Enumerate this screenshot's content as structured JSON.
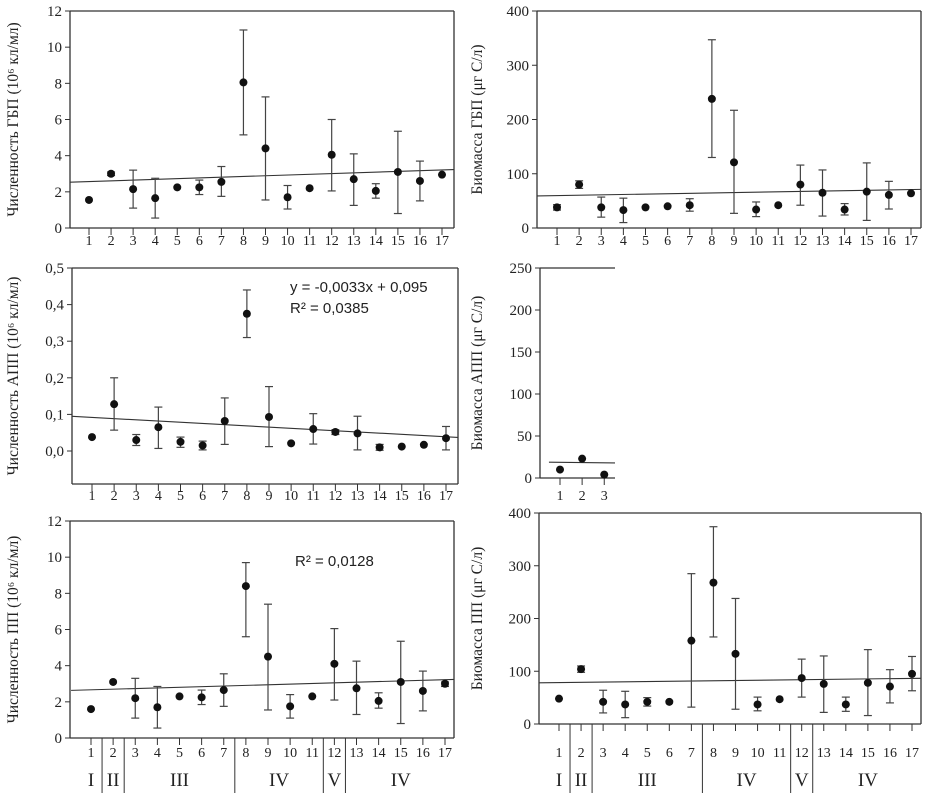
{
  "chart_data": [
    {
      "type": "scatter",
      "ylabel": "Численность ГБП (10⁶ кл/мл)",
      "ylim": [
        0,
        12
      ],
      "yticks": [
        "0",
        "2",
        "4",
        "6",
        "8",
        "10",
        "12"
      ],
      "x": [
        1,
        2,
        3,
        4,
        5,
        6,
        7,
        8,
        9,
        10,
        11,
        12,
        13,
        14,
        15,
        16,
        17
      ],
      "y": [
        1.55,
        3.0,
        2.15,
        1.65,
        2.25,
        2.25,
        2.55,
        8.05,
        4.4,
        1.7,
        2.2,
        4.05,
        2.7,
        2.05,
        3.1,
        2.6,
        2.95
      ],
      "err_low": [
        1.55,
        2.9,
        1.1,
        0.55,
        2.2,
        1.85,
        1.75,
        5.15,
        1.55,
        1.05,
        2.2,
        2.05,
        1.25,
        1.65,
        0.8,
        1.5,
        2.9
      ],
      "err_high": [
        1.55,
        3.1,
        3.2,
        2.75,
        2.3,
        2.65,
        3.4,
        10.95,
        7.25,
        2.35,
        2.2,
        6.0,
        4.1,
        2.45,
        5.35,
        3.7,
        3.0
      ],
      "trend": {
        "slope": 0.04,
        "intercept": 2.53
      },
      "equation": "",
      "r2": ""
    },
    {
      "type": "scatter",
      "ylabel": "Биомасса ГБП (μг С/л)",
      "ylim": [
        0,
        400
      ],
      "yticks": [
        "0",
        "100",
        "200",
        "300",
        "400"
      ],
      "x": [
        1,
        2,
        3,
        4,
        5,
        6,
        7,
        8,
        9,
        10,
        11,
        12,
        13,
        14,
        15,
        16,
        17
      ],
      "y": [
        38,
        80,
        38,
        33,
        38,
        40,
        42,
        238,
        121,
        34,
        42,
        80,
        65,
        34,
        67,
        61,
        64
      ],
      "err_low": [
        33,
        73,
        20,
        10,
        36,
        38,
        31,
        130,
        27,
        21,
        40,
        42,
        22,
        24,
        14,
        35,
        62
      ],
      "err_high": [
        43,
        87,
        57,
        55,
        40,
        42,
        54,
        347,
        217,
        48,
        44,
        116,
        107,
        45,
        120,
        86,
        66
      ],
      "trend": {
        "slope": 0.7,
        "intercept": 59
      },
      "equation": "",
      "r2": ""
    },
    {
      "type": "scatter",
      "ylabel": "Численность АПП (10⁶ кл/мл)",
      "ylim": [
        -0.09,
        0.5
      ],
      "yticks": [
        "0,0",
        "0,1",
        "0,2",
        "0,3",
        "0,4",
        "0,5"
      ],
      "x": [
        1,
        2,
        3,
        4,
        5,
        6,
        7,
        8,
        9,
        10,
        11,
        12,
        13,
        14,
        15,
        16,
        17
      ],
      "y": [
        0.038,
        0.128,
        0.03,
        0.065,
        0.025,
        0.015,
        0.082,
        0.375,
        0.093,
        0.021,
        0.06,
        0.052,
        0.048,
        0.01,
        0.012,
        0.017,
        0.035
      ],
      "err_low": [
        0.038,
        0.057,
        0.015,
        0.007,
        0.01,
        0.003,
        0.018,
        0.31,
        0.012,
        0.021,
        0.019,
        0.045,
        0.003,
        0.002,
        0.01,
        0.015,
        0.003
      ],
      "err_high": [
        0.038,
        0.2,
        0.045,
        0.12,
        0.038,
        0.027,
        0.145,
        0.44,
        0.176,
        0.021,
        0.102,
        0.058,
        0.095,
        0.018,
        0.014,
        0.019,
        0.067
      ],
      "trend": {
        "slope": -0.0033,
        "intercept": 0.095
      },
      "equation": "y = -0,0033x + 0,095",
      "r2": "R² = 0,0385"
    },
    {
      "type": "scatter",
      "ylabel": "Биомасса АПП (μг С/л)",
      "ylim": [
        0,
        250
      ],
      "yticks": [
        "0",
        "50",
        "100",
        "150",
        "200",
        "250"
      ],
      "x": [
        1,
        2,
        3
      ],
      "y": [
        10,
        23,
        4
      ],
      "err_low": [
        9,
        22,
        3
      ],
      "err_high": [
        11,
        24,
        5
      ],
      "trend": {
        "slope": -0.3,
        "intercept": 19
      },
      "equation": "",
      "r2": ""
    },
    {
      "type": "scatter",
      "ylabel": "Численность ПП (10⁶ кл/мл)",
      "ylim": [
        0,
        12
      ],
      "yticks": [
        "0",
        "2",
        "4",
        "6",
        "8",
        "10",
        "12"
      ],
      "x": [
        1,
        2,
        3,
        4,
        5,
        6,
        7,
        8,
        9,
        10,
        11,
        12,
        13,
        14,
        15,
        16,
        17
      ],
      "y": [
        1.6,
        3.1,
        2.2,
        1.7,
        2.3,
        2.25,
        2.65,
        8.4,
        4.5,
        1.75,
        2.3,
        4.1,
        2.75,
        2.05,
        3.1,
        2.6,
        3.0
      ],
      "err_low": [
        1.6,
        3.05,
        1.1,
        0.55,
        2.25,
        1.85,
        1.75,
        5.6,
        1.55,
        1.1,
        2.25,
        2.1,
        1.3,
        1.65,
        0.8,
        1.5,
        2.85
      ],
      "err_high": [
        1.6,
        3.15,
        3.3,
        2.85,
        2.35,
        2.65,
        3.55,
        9.7,
        7.4,
        2.4,
        2.35,
        6.05,
        4.25,
        2.5,
        5.35,
        3.7,
        3.1
      ],
      "trend": {
        "slope": 0.035,
        "intercept": 2.63
      },
      "equation": "",
      "r2": "R² = 0,0128"
    },
    {
      "type": "scatter",
      "ylabel": "Биомасса ПП (μг С/л)",
      "ylim": [
        0,
        400
      ],
      "yticks": [
        "0",
        "100",
        "200",
        "300",
        "400"
      ],
      "x": [
        1,
        2,
        3,
        4,
        5,
        6,
        7,
        8,
        9,
        10,
        11,
        12,
        13,
        14,
        15,
        16,
        17
      ],
      "y": [
        48,
        104,
        42,
        37,
        42,
        42,
        158,
        268,
        133,
        37,
        47,
        87,
        76,
        37,
        78,
        71,
        95
      ],
      "err_low": [
        46,
        98,
        21,
        12,
        34,
        40,
        32,
        165,
        28,
        25,
        45,
        51,
        22,
        24,
        16,
        40,
        63
      ],
      "err_high": [
        50,
        110,
        64,
        62,
        50,
        44,
        285,
        374,
        238,
        51,
        49,
        123,
        129,
        51,
        141,
        103,
        128
      ],
      "trend": {
        "slope": 0.5,
        "intercept": 78
      },
      "equation": "",
      "r2": ""
    }
  ],
  "x_tick_labels": [
    "1",
    "2",
    "3",
    "4",
    "5",
    "6",
    "7",
    "8",
    "9",
    "10",
    "11",
    "12",
    "13",
    "14",
    "15",
    "16",
    "17"
  ],
  "groups": [
    {
      "label": "I",
      "from": 1,
      "to": 1
    },
    {
      "label": "II",
      "from": 2,
      "to": 2
    },
    {
      "label": "III",
      "from": 3,
      "to": 7
    },
    {
      "label": "IV",
      "from": 8,
      "to": 11
    },
    {
      "label": "V",
      "from": 12,
      "to": 12
    },
    {
      "label": "IV",
      "from": 13,
      "to": 17
    }
  ],
  "colors": {
    "marker": "#111111",
    "axis": "#333333",
    "trend": "#333333"
  }
}
